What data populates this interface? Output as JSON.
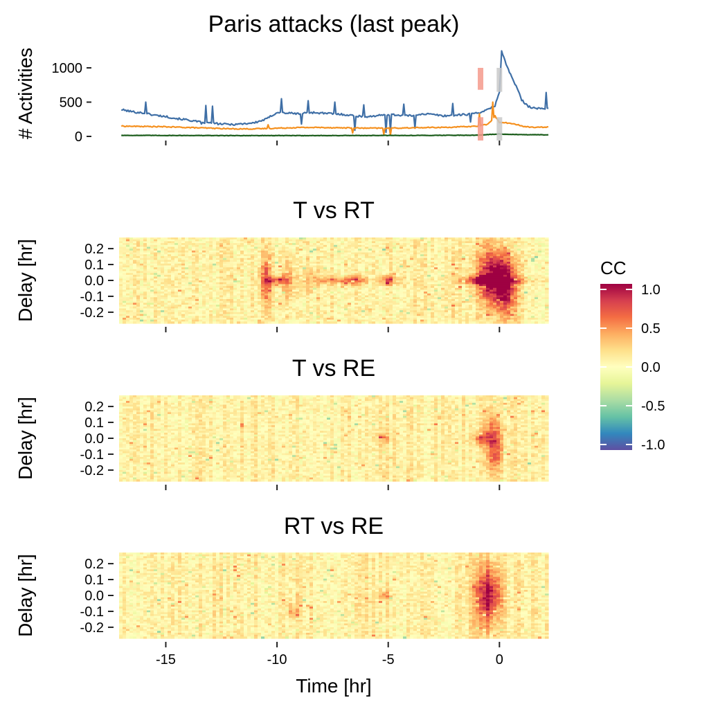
{
  "title": "Paris attacks (last peak)",
  "colors": {
    "tweets": "#3f6fa6",
    "retweets": "#f5901e",
    "replies": "#1a5c1a",
    "marker_red": "#f59a8c",
    "marker_grey": "#c9c9c9",
    "tick": "#222222"
  },
  "chart_data": [
    {
      "type": "line",
      "name": "activity-panel",
      "title": "Paris attacks (last peak)",
      "ylabel": "# Activities",
      "xlabel": "",
      "xlim": [
        -17.1,
        2.2
      ],
      "ylim": [
        -50,
        1300
      ],
      "yticks": [
        0,
        500,
        1000
      ],
      "ytick_labels": [
        "0",
        "500",
        "1000"
      ],
      "xticks": [
        -15,
        -10,
        -5,
        0
      ],
      "show_xtick_labels": false,
      "grid": false,
      "series": [
        {
          "color_key": "tweets",
          "x": [
            -17.0,
            -16.5,
            -16.0,
            -15.5,
            -15.0,
            -14.5,
            -14.0,
            -13.5,
            -13.0,
            -12.5,
            -12.0,
            -11.5,
            -11.0,
            -10.5,
            -10.0,
            -9.5,
            -9.0,
            -8.5,
            -8.0,
            -7.5,
            -7.0,
            -6.5,
            -6.0,
            -5.5,
            -5.0,
            -4.5,
            -4.0,
            -3.5,
            -3.0,
            -2.5,
            -2.0,
            -1.5,
            -1.0,
            -0.5,
            -0.2,
            0.0,
            0.1,
            0.3,
            0.5,
            0.8,
            1.0,
            1.3,
            1.6,
            2.0,
            2.2
          ],
          "y": [
            390,
            360,
            340,
            310,
            290,
            260,
            240,
            210,
            195,
            180,
            175,
            185,
            200,
            250,
            350,
            340,
            330,
            350,
            340,
            330,
            320,
            300,
            290,
            300,
            320,
            310,
            300,
            330,
            320,
            300,
            310,
            320,
            340,
            390,
            450,
            650,
            1250,
            1050,
            900,
            700,
            530,
            440,
            410,
            400,
            420
          ],
          "spikes": [
            [
              -15.9,
              500
            ],
            [
              -13.2,
              450
            ],
            [
              -12.9,
              440
            ],
            [
              -9.8,
              550
            ],
            [
              -8.6,
              520
            ],
            [
              -7.4,
              500
            ],
            [
              -6.1,
              460
            ],
            [
              -4.3,
              470
            ],
            [
              -2.1,
              480
            ],
            [
              2.1,
              640
            ]
          ],
          "dips": [
            [
              -13.4,
              180
            ],
            [
              -8.9,
              180
            ],
            [
              -6.5,
              90
            ],
            [
              -5.1,
              60
            ],
            [
              -4.9,
              80
            ],
            [
              -3.8,
              120
            ],
            [
              -1.3,
              210
            ]
          ]
        },
        {
          "color_key": "retweets",
          "x": [
            -17.0,
            -16.0,
            -15.0,
            -14.0,
            -13.0,
            -12.0,
            -11.0,
            -10.0,
            -9.0,
            -8.0,
            -7.0,
            -6.0,
            -5.0,
            -4.0,
            -3.0,
            -2.0,
            -1.0,
            -0.5,
            -0.2,
            0.0,
            0.3,
            0.8,
            1.2,
            1.7,
            2.2
          ],
          "y": [
            150,
            145,
            140,
            130,
            120,
            110,
            110,
            120,
            130,
            130,
            125,
            120,
            120,
            125,
            130,
            135,
            150,
            180,
            300,
            200,
            200,
            170,
            140,
            130,
            140
          ],
          "spikes": [
            [
              -10.4,
              170
            ],
            [
              -0.3,
              500
            ],
            [
              -0.9,
              330
            ]
          ],
          "dips": [
            [
              -4.9,
              20
            ],
            [
              -5.2,
              30
            ],
            [
              -6.6,
              50
            ]
          ]
        },
        {
          "color_key": "replies",
          "x": [
            -17.0,
            -12.0,
            -8.0,
            -4.0,
            -1.0,
            0.0,
            1.0,
            2.2
          ],
          "y": [
            15,
            12,
            12,
            14,
            18,
            35,
            25,
            22
          ],
          "spikes": [],
          "dips": []
        }
      ],
      "markers": [
        {
          "color_key": "marker_red",
          "x": -0.85,
          "y_range": [
            680,
            1000
          ]
        },
        {
          "color_key": "marker_red",
          "x": -0.85,
          "y_range": [
            -60,
            280
          ]
        },
        {
          "color_key": "marker_grey",
          "x": 0.0,
          "y_range": [
            650,
            1000
          ]
        },
        {
          "color_key": "marker_grey",
          "x": 0.0,
          "y_range": [
            -60,
            280
          ]
        }
      ]
    },
    {
      "type": "heatmap",
      "name": "t-vs-rt",
      "title": "T vs RT",
      "ylabel": "Delay [hr]",
      "xlim": [
        -17.1,
        2.2
      ],
      "ylim": [
        -0.27,
        0.27
      ],
      "yticks": [
        -0.2,
        -0.1,
        0.0,
        0.1,
        0.2
      ],
      "ytick_labels": [
        "-0.2",
        "-0.1",
        "0.0",
        "0.1",
        "0.2"
      ],
      "xticks": [
        -15,
        -10,
        -5,
        0
      ],
      "show_xtick_labels": false,
      "features": [
        {
          "x": -10.5,
          "d": 0.0,
          "sx": 0.18,
          "sd": 0.1,
          "v": 0.55
        },
        {
          "x": -9.5,
          "d": 0.0,
          "sx": 0.2,
          "sd": 0.08,
          "v": 0.35
        },
        {
          "x": -8.5,
          "d": 0.0,
          "sx": 0.25,
          "sd": 0.06,
          "v": 0.3
        },
        {
          "x": -6.5,
          "d": 0.0,
          "sx": 0.35,
          "sd": 0.02,
          "v": 0.55
        },
        {
          "x": -5.0,
          "d": 0.0,
          "sx": 0.3,
          "sd": 0.02,
          "v": 0.6
        },
        {
          "x": -10.0,
          "d": 0.0,
          "sx": 0.35,
          "sd": 0.015,
          "v": 0.6
        },
        {
          "x": -7.5,
          "d": 0.0,
          "sx": 0.5,
          "sd": 0.015,
          "v": 0.45
        },
        {
          "x": -1.0,
          "d": 0.0,
          "sx": 0.4,
          "sd": 0.02,
          "v": 0.5
        },
        {
          "x": -0.6,
          "d": 0.03,
          "sx": 0.35,
          "sd": 0.14,
          "v": 0.65
        },
        {
          "x": 0.0,
          "d": 0.0,
          "sx": 0.35,
          "sd": 0.1,
          "v": 0.9
        },
        {
          "x": 0.4,
          "d": -0.05,
          "sx": 0.3,
          "sd": 0.15,
          "v": 0.55
        },
        {
          "x": 0.0,
          "d": 0.0,
          "sx": 1.2,
          "sd": 0.015,
          "v": 0.4
        }
      ],
      "noise": 0.14,
      "seed": 11
    },
    {
      "type": "heatmap",
      "name": "t-vs-re",
      "title": "T vs RE",
      "ylabel": "Delay [hr]",
      "xlim": [
        -17.1,
        2.2
      ],
      "ylim": [
        -0.27,
        0.27
      ],
      "yticks": [
        -0.2,
        -0.1,
        0.0,
        0.1,
        0.2
      ],
      "ytick_labels": [
        "-0.2",
        "-0.1",
        "0.0",
        "0.1",
        "0.2"
      ],
      "xticks": [
        -15,
        -10,
        -5,
        0
      ],
      "show_xtick_labels": false,
      "features": [
        {
          "x": -0.8,
          "d": 0.0,
          "sx": 0.3,
          "sd": 0.03,
          "v": 0.45
        },
        {
          "x": -0.3,
          "d": 0.0,
          "sx": 0.3,
          "sd": 0.12,
          "v": 0.45
        },
        {
          "x": -0.15,
          "d": -0.1,
          "sx": 0.2,
          "sd": 0.12,
          "v": 0.35
        },
        {
          "x": -5.2,
          "d": 0.0,
          "sx": 0.2,
          "sd": 0.02,
          "v": 0.35
        }
      ],
      "noise": 0.12,
      "seed": 23
    },
    {
      "type": "heatmap",
      "name": "rt-vs-re",
      "title": "RT vs RE",
      "ylabel": "Delay [hr]",
      "xlabel": "Time [hr]",
      "xlim": [
        -17.1,
        2.2
      ],
      "ylim": [
        -0.27,
        0.27
      ],
      "yticks": [
        -0.2,
        -0.1,
        0.0,
        0.1,
        0.2
      ],
      "ytick_labels": [
        "-0.2",
        "-0.1",
        "0.0",
        "0.1",
        "0.2"
      ],
      "xticks": [
        -15,
        -10,
        -5,
        0
      ],
      "xtick_labels": [
        "-15",
        "-10",
        "-5",
        "0"
      ],
      "show_xtick_labels": true,
      "features": [
        {
          "x": -0.7,
          "d": -0.02,
          "sx": 0.35,
          "sd": 0.14,
          "v": 0.55
        },
        {
          "x": -0.3,
          "d": 0.02,
          "sx": 0.3,
          "sd": 0.12,
          "v": 0.5
        },
        {
          "x": -9.3,
          "d": -0.1,
          "sx": 0.2,
          "sd": 0.03,
          "v": 0.35
        },
        {
          "x": -5.1,
          "d": 0.0,
          "sx": 0.2,
          "sd": 0.02,
          "v": 0.35
        }
      ],
      "noise": 0.13,
      "seed": 37
    }
  ],
  "legend": {
    "title": "CC",
    "position": "right",
    "range": [
      -1.0,
      1.0
    ],
    "ticks": [
      1.0,
      0.5,
      0.0,
      -0.5,
      -1.0
    ],
    "tick_labels": [
      "1.0",
      "0.5",
      "0.0",
      "-0.5",
      "-1.0"
    ],
    "palette": "Spectral",
    "palette_stops": [
      "#5e4fa2",
      "#3288bd",
      "#66c2a5",
      "#abdda4",
      "#e6f598",
      "#ffffbf",
      "#fee08b",
      "#fdae61",
      "#f46d43",
      "#d53e4f",
      "#9e0142"
    ]
  }
}
